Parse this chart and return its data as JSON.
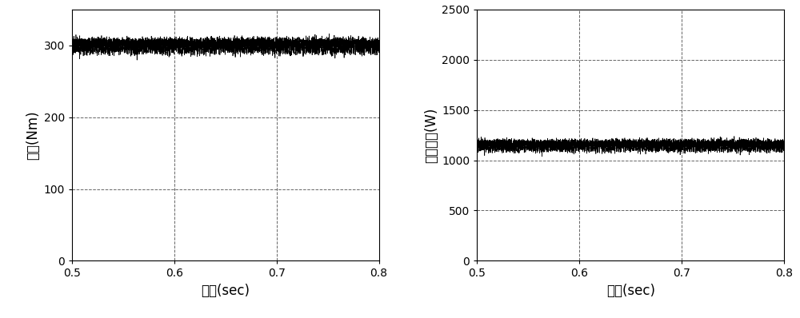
{
  "left_plot": {
    "xlabel": "时间(sec)",
    "ylabel": "转矩(Nm)",
    "xlim": [
      0.5,
      0.8
    ],
    "ylim": [
      0,
      350
    ],
    "yticks": [
      0,
      100,
      200,
      300
    ],
    "xticks": [
      0.5,
      0.6,
      0.7,
      0.8
    ],
    "signal_mean": 300,
    "signal_noise": 10,
    "signal_freq": 800
  },
  "right_plot": {
    "xlabel": "时间(sec)",
    "ylabel": "转子铜耗(W)",
    "xlim": [
      0.5,
      0.8
    ],
    "ylim": [
      0,
      2500
    ],
    "yticks": [
      0,
      500,
      1000,
      1500,
      2000,
      2500
    ],
    "xticks": [
      0.5,
      0.6,
      0.7,
      0.8
    ],
    "signal_mean": 1150,
    "signal_noise": 55,
    "signal_freq": 800
  },
  "line_color": "#000000",
  "background_color": "#ffffff",
  "grid_color": "#000000",
  "grid_linestyle": "--",
  "grid_alpha": 0.6,
  "figsize": [
    10.0,
    3.98
  ],
  "dpi": 100
}
